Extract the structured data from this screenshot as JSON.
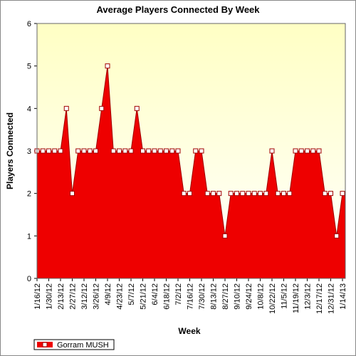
{
  "chart_data": {
    "type": "area",
    "title": "Average Players Connected By Week",
    "x_label": "Week",
    "y_label": "Players Connected",
    "categories": [
      "1/16/12",
      null,
      "1/30/12",
      null,
      "2/13/12",
      null,
      "2/27/12",
      null,
      "3/12/12",
      null,
      "3/26/12",
      null,
      "4/9/12",
      null,
      "4/23/12",
      null,
      "5/7/12",
      null,
      "5/21/12",
      null,
      "6/4/12",
      null,
      "6/18/12",
      null,
      "7/2/12",
      null,
      "7/16/12",
      null,
      "7/30/12",
      null,
      "8/13/12",
      null,
      "8/27/12",
      null,
      "9/10/12",
      null,
      "9/24/12",
      null,
      "10/8/12",
      null,
      "10/22/12",
      null,
      "11/5/12",
      null,
      "11/19/12",
      null,
      "12/3/12",
      null,
      "12/17/12",
      null,
      "12/31/12",
      null,
      "1/14/13"
    ],
    "series": [
      {
        "name": "Gorram MUSH",
        "color": "#ee0000",
        "values": [
          3,
          3,
          3,
          3,
          3,
          4,
          2,
          3,
          3,
          3,
          3,
          4,
          5,
          3,
          3,
          3,
          3,
          4,
          3,
          3,
          3,
          3,
          3,
          3,
          3,
          2,
          2,
          3,
          3,
          2,
          2,
          2,
          1,
          2,
          2,
          2,
          2,
          2,
          2,
          2,
          3,
          2,
          2,
          2,
          3,
          3,
          3,
          3,
          3,
          2,
          2,
          1,
          2
        ]
      }
    ],
    "ylim": [
      0,
      6
    ],
    "yticks": [
      0,
      1,
      2,
      3,
      4,
      5,
      6
    ],
    "grid": false,
    "legend": "bottom-left"
  }
}
